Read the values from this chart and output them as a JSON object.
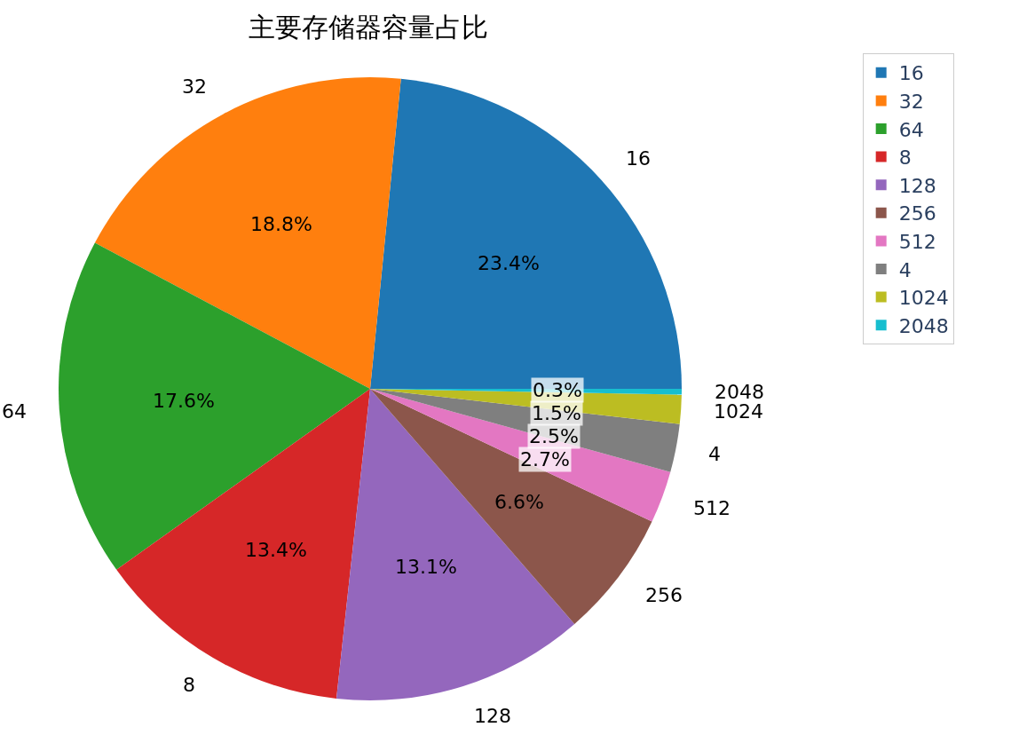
{
  "chart_data": {
    "type": "pie",
    "title": "主要存储器容量占比",
    "categories": [
      "16",
      "32",
      "64",
      "8",
      "128",
      "256",
      "512",
      "4",
      "1024",
      "2048"
    ],
    "values": [
      23.4,
      18.8,
      17.6,
      13.4,
      13.1,
      6.6,
      2.7,
      2.5,
      1.5,
      0.3
    ],
    "value_labels": [
      "23.4%",
      "18.8%",
      "17.6%",
      "13.4%",
      "13.1%",
      "6.6%",
      "2.7%",
      "2.5%",
      "1.5%",
      "0.3%"
    ],
    "colors": [
      "#1f77b4",
      "#ff7f0e",
      "#2ca02c",
      "#d62728",
      "#9467bd",
      "#8c564b",
      "#e377c2",
      "#7f7f7f",
      "#bcbd22",
      "#17becf"
    ],
    "legend": "top right"
  }
}
